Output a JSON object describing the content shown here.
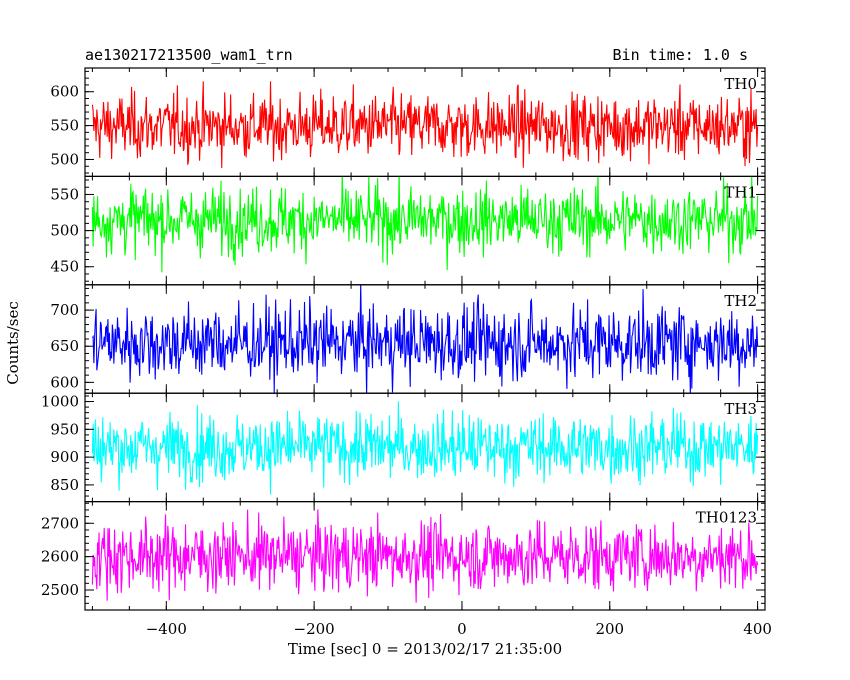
{
  "header": {
    "title": "ae130217213500_wam1_trn",
    "bin_time": "Bin time: 1.0 s"
  },
  "chart_data": {
    "type": "line",
    "xlabel": "Time [sec] 0 = 2013/02/17 21:35:00",
    "ylabel": "Counts/sec",
    "xlim": [
      -510,
      410
    ],
    "xticks": [
      -400,
      -200,
      0,
      200,
      400
    ],
    "xtick_labels": [
      "−400",
      "−200",
      "0",
      "200",
      "400"
    ],
    "x_start": -500,
    "x_end": 400,
    "x_step": 1,
    "panels": [
      {
        "name": "TH0",
        "color": "#ff0000",
        "ylim": [
          475,
          635
        ],
        "yticks": [
          500,
          550,
          600
        ],
        "mean": 549,
        "sigma": 24
      },
      {
        "name": "TH1",
        "color": "#00ff00",
        "ylim": [
          425,
          575
        ],
        "yticks": [
          450,
          500,
          550
        ],
        "mean": 515,
        "sigma": 23
      },
      {
        "name": "TH2",
        "color": "#0000ff",
        "ylim": [
          585,
          735
        ],
        "yticks": [
          600,
          650,
          700
        ],
        "mean": 655,
        "sigma": 26
      },
      {
        "name": "TH3",
        "color": "#00ffff",
        "ylim": [
          820,
          1015
        ],
        "yticks": [
          850,
          900,
          950,
          1000
        ],
        "mean": 918,
        "sigma": 30
      },
      {
        "name": "TH0123",
        "color": "#ff00ff",
        "ylim": [
          2440,
          2765
        ],
        "yticks": [
          2500,
          2600,
          2700
        ],
        "mean": 2602,
        "sigma": 52
      }
    ]
  }
}
